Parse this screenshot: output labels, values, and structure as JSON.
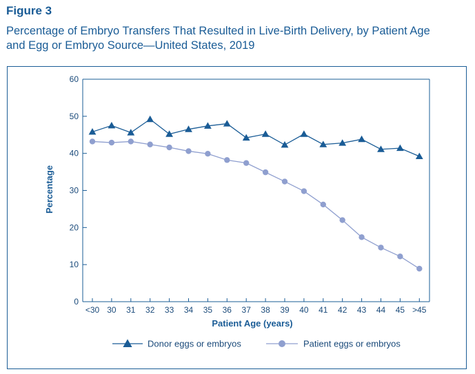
{
  "figure_label": "Figure 3",
  "figure_title_line1": "Percentage of Embryo Transfers That Resulted in Live-Birth Delivery, by Patient Age",
  "figure_title_line2": "and Egg or Embryo Source—United States, 2019",
  "chart_data": {
    "type": "line",
    "title": "Percentage of Embryo Transfers That Resulted in Live-Birth Delivery, by Patient Age and Egg or Embryo Source—United States, 2019",
    "xlabel": "Patient Age (years)",
    "ylabel": "Percentage",
    "ylim": [
      0,
      60
    ],
    "yticks": [
      0,
      10,
      20,
      30,
      40,
      50,
      60
    ],
    "categories": [
      "<30",
      "30",
      "31",
      "32",
      "33",
      "34",
      "35",
      "36",
      "37",
      "38",
      "39",
      "40",
      "41",
      "42",
      "43",
      "44",
      "45",
      ">45"
    ],
    "series": [
      {
        "name": "Donor eggs or embryos",
        "marker": "triangle",
        "color": "#1a5c96",
        "values": [
          45.8,
          47.5,
          45.6,
          49.2,
          45.2,
          46.5,
          47.4,
          48.0,
          44.2,
          45.2,
          42.3,
          45.2,
          42.4,
          42.8,
          43.8,
          41.1,
          41.4,
          39.2
        ]
      },
      {
        "name": "Patient eggs or embryos",
        "marker": "circle",
        "color": "#8f9fcf",
        "values": [
          43.2,
          42.9,
          43.2,
          42.4,
          41.6,
          40.6,
          39.9,
          38.2,
          37.4,
          34.9,
          32.4,
          29.8,
          26.2,
          22.0,
          17.4,
          14.6,
          12.2,
          8.9
        ]
      }
    ],
    "legend_position": "bottom"
  }
}
